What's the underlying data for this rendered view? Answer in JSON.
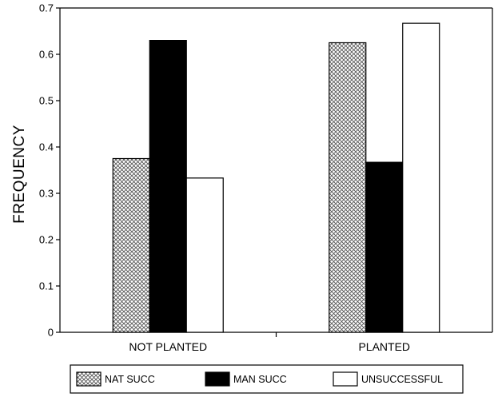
{
  "chart_data": {
    "type": "bar",
    "title": "",
    "xlabel": "",
    "ylabel": "FREQUENCY",
    "ylim": [
      0,
      0.7
    ],
    "yticks": [
      "0",
      "0.1",
      "0.2",
      "0.3",
      "0.4",
      "0.5",
      "0.6",
      "0.7"
    ],
    "categories": [
      "NOT PLANTED",
      "PLANTED"
    ],
    "series": [
      {
        "name": "NAT SUCC",
        "values": [
          0.375,
          0.625
        ],
        "fill": "crosshatch"
      },
      {
        "name": "MAN SUCC",
        "values": [
          0.63,
          0.367
        ],
        "fill": "#000000"
      },
      {
        "name": "UNSUCCESSFUL",
        "values": [
          0.333,
          0.667
        ],
        "fill": "#ffffff"
      }
    ],
    "grid": false,
    "legend_position": "bottom"
  }
}
